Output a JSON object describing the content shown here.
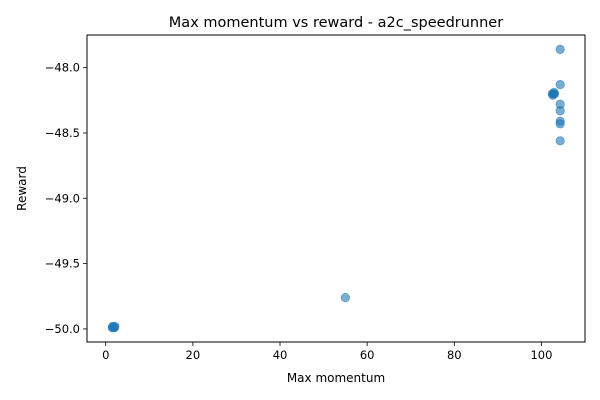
{
  "chart_data": {
    "type": "scatter",
    "title": "Max momentum vs reward - a2c_speedrunner",
    "xlabel": "Max momentum",
    "ylabel": "Reward",
    "xlim": [
      -4.3,
      110
    ],
    "ylim": [
      -50.1,
      -47.75
    ],
    "x_ticks": [
      0,
      20,
      40,
      60,
      80,
      100
    ],
    "y_ticks": [
      -50.0,
      -49.5,
      -49.0,
      -48.5,
      -48.0
    ],
    "x_tick_labels": [
      "0",
      "20",
      "40",
      "60",
      "80",
      "100"
    ],
    "y_tick_labels": [
      "−50.0",
      "−49.5",
      "−49.0",
      "−48.5",
      "−48.0"
    ],
    "grid": false,
    "marker_color": "#1f77b4",
    "marker_alpha": 0.6,
    "points": [
      {
        "x": 1.5,
        "y": -49.99
      },
      {
        "x": 1.8,
        "y": -49.99
      },
      {
        "x": 2.0,
        "y": -49.99
      },
      {
        "x": 1.6,
        "y": -49.98
      },
      {
        "x": 2.1,
        "y": -49.98
      },
      {
        "x": 55.0,
        "y": -49.76
      },
      {
        "x": 102.5,
        "y": -48.2
      },
      {
        "x": 102.8,
        "y": -48.2
      },
      {
        "x": 103.0,
        "y": -48.2
      },
      {
        "x": 102.6,
        "y": -48.21
      },
      {
        "x": 102.9,
        "y": -48.19
      },
      {
        "x": 104.3,
        "y": -47.86
      },
      {
        "x": 104.3,
        "y": -48.13
      },
      {
        "x": 104.3,
        "y": -48.28
      },
      {
        "x": 104.3,
        "y": -48.33
      },
      {
        "x": 104.3,
        "y": -48.41
      },
      {
        "x": 104.3,
        "y": -48.43
      },
      {
        "x": 104.3,
        "y": -48.56
      }
    ]
  }
}
